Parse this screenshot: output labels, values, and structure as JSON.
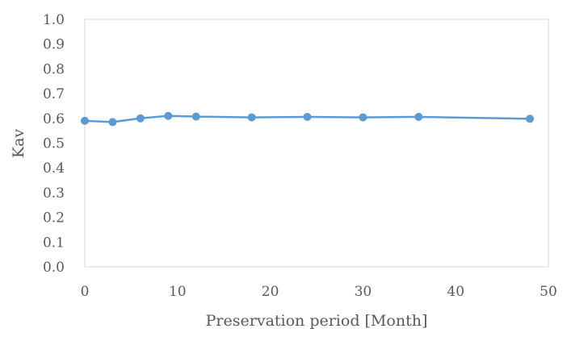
{
  "chart_data": {
    "type": "line",
    "xlabel": "Preservation period [Month]",
    "ylabel": "Kav",
    "xlim": [
      0,
      50
    ],
    "ylim": [
      0.0,
      1.0
    ],
    "xticks": [
      "0",
      "10",
      "20",
      "30",
      "40",
      "50"
    ],
    "yticks": [
      "0.0",
      "0.1",
      "0.2",
      "0.3",
      "0.4",
      "0.5",
      "0.6",
      "0.7",
      "0.8",
      "0.9",
      "1.0"
    ],
    "grid": false,
    "legend": "none",
    "series": [
      {
        "color": "#5b9bd5",
        "x": [
          0,
          3,
          6,
          9,
          12,
          18,
          24,
          30,
          36,
          48
        ],
        "y": [
          0.59,
          0.585,
          0.6,
          0.61,
          0.607,
          0.604,
          0.606,
          0.604,
          0.606,
          0.598
        ]
      }
    ]
  }
}
